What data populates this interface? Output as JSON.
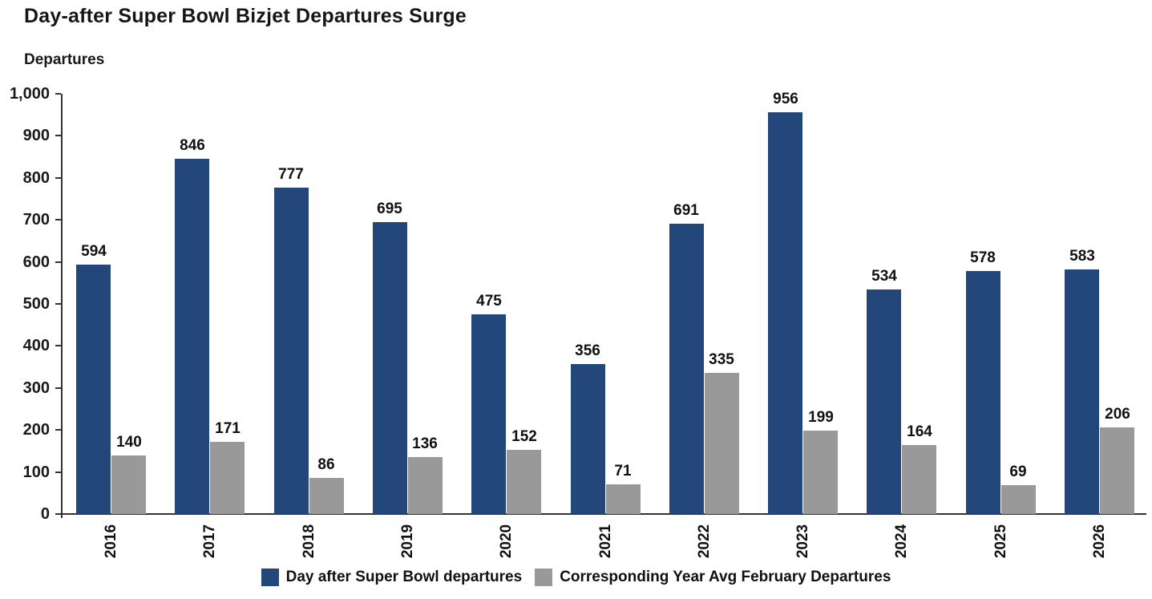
{
  "chart_data": {
    "type": "bar",
    "title": "Day-after Super Bowl Bizjet Departures Surge",
    "ylabel": "Departures",
    "xlabel": "",
    "categories": [
      "2016",
      "2017",
      "2018",
      "2019",
      "2020",
      "2021",
      "2022",
      "2023",
      "2024",
      "2025",
      "2026"
    ],
    "series": [
      {
        "name": "Day after Super Bowl departures",
        "color": "#24477B",
        "values": [
          594,
          846,
          777,
          695,
          475,
          356,
          691,
          956,
          534,
          578,
          583
        ]
      },
      {
        "name": "Corresponding Year Avg February Departures",
        "color": "#999999",
        "values": [
          140,
          171,
          86,
          136,
          152,
          71,
          335,
          199,
          164,
          69,
          206
        ]
      }
    ],
    "ylim": [
      0,
      1000
    ],
    "ytick_step": 100,
    "ytick_labels": [
      "0",
      "100",
      "200",
      "300",
      "400",
      "500",
      "600",
      "700",
      "800",
      "900",
      "1,000"
    ],
    "grid": false,
    "legend_position": "bottom",
    "bar_labels_shown": true
  }
}
